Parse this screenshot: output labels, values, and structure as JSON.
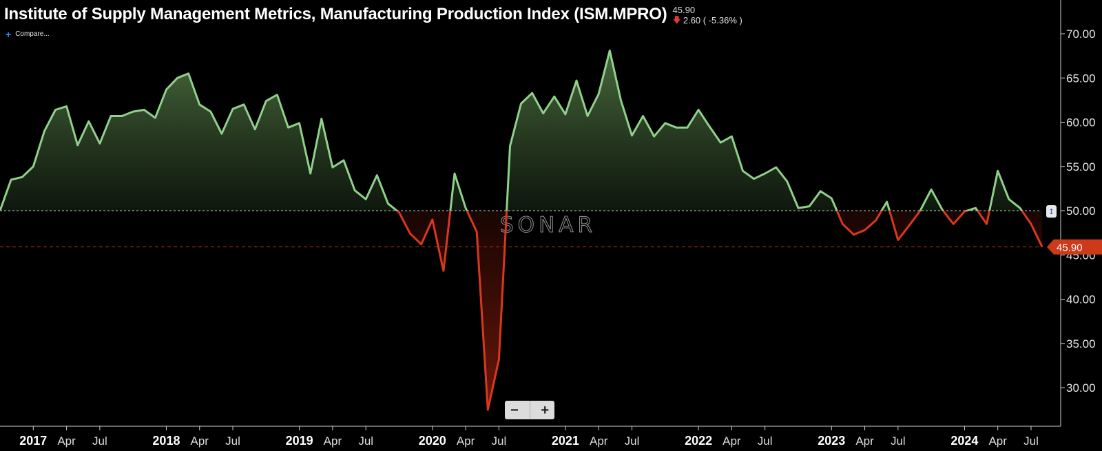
{
  "header": {
    "title": "Institute of Supply Management Metrics, Manufacturing Production Index (ISM.MPRO)",
    "last_value": "45.90",
    "change": "2.60 ( -5.36% )",
    "change_direction": "down",
    "compare_label": "Compare..."
  },
  "watermark": "SONAR",
  "zoom": {
    "out_label": "−",
    "in_label": "+"
  },
  "colors": {
    "above": "#8fd18a",
    "below": "#d9381e",
    "current_badge": "#cc3a1a",
    "background": "#000000"
  },
  "chart_data": {
    "type": "area",
    "title": "Institute of Supply Management Metrics, Manufacturing Production Index (ISM.MPRO)",
    "baseline": 50,
    "current_value": 45.9,
    "current_label": "45.90",
    "ylim": [
      26,
      74
    ],
    "y_ticks": [
      30,
      35,
      40,
      45,
      50,
      55,
      60,
      65,
      70
    ],
    "y_tick_labels": [
      "30.00",
      "35.00",
      "40.00",
      "45.00",
      "50.00",
      "55.00",
      "60.00",
      "65.00",
      "70.00"
    ],
    "x_ticks": [
      {
        "label": "2017",
        "date": "2017-01",
        "major": true
      },
      {
        "label": "Apr",
        "date": "2017-04",
        "major": false
      },
      {
        "label": "Jul",
        "date": "2017-07",
        "major": false
      },
      {
        "label": "2018",
        "date": "2018-01",
        "major": true
      },
      {
        "label": "Apr",
        "date": "2018-04",
        "major": false
      },
      {
        "label": "Jul",
        "date": "2018-07",
        "major": false
      },
      {
        "label": "2019",
        "date": "2019-01",
        "major": true
      },
      {
        "label": "Apr",
        "date": "2019-04",
        "major": false
      },
      {
        "label": "Jul",
        "date": "2019-07",
        "major": false
      },
      {
        "label": "2020",
        "date": "2020-01",
        "major": true
      },
      {
        "label": "Apr",
        "date": "2020-04",
        "major": false
      },
      {
        "label": "Jul",
        "date": "2020-07",
        "major": false
      },
      {
        "label": "2021",
        "date": "2021-01",
        "major": true
      },
      {
        "label": "Apr",
        "date": "2021-04",
        "major": false
      },
      {
        "label": "Jul",
        "date": "2021-07",
        "major": false
      },
      {
        "label": "2022",
        "date": "2022-01",
        "major": true
      },
      {
        "label": "Apr",
        "date": "2022-04",
        "major": false
      },
      {
        "label": "Jul",
        "date": "2022-07",
        "major": false
      },
      {
        "label": "2023",
        "date": "2023-01",
        "major": true
      },
      {
        "label": "Apr",
        "date": "2023-04",
        "major": false
      },
      {
        "label": "Jul",
        "date": "2023-07",
        "major": false
      },
      {
        "label": "2024",
        "date": "2024-01",
        "major": true
      },
      {
        "label": "Apr",
        "date": "2024-04",
        "major": false
      },
      {
        "label": "Jul",
        "date": "2024-07",
        "major": false
      }
    ],
    "x_start": "2016-10",
    "x_end": "2024-07",
    "series": [
      {
        "values": [
          [
            "2016-10",
            50.0
          ],
          [
            "2016-11",
            53.5
          ],
          [
            "2016-12",
            53.8
          ],
          [
            "2017-01",
            55.0
          ],
          [
            "2017-02",
            59.0
          ],
          [
            "2017-03",
            61.4
          ],
          [
            "2017-04",
            61.8
          ],
          [
            "2017-05",
            57.4
          ],
          [
            "2017-06",
            60.1
          ],
          [
            "2017-07",
            57.6
          ],
          [
            "2017-08",
            60.7
          ],
          [
            "2017-09",
            60.7
          ],
          [
            "2017-10",
            61.2
          ],
          [
            "2017-11",
            61.4
          ],
          [
            "2017-12",
            60.5
          ],
          [
            "2018-01",
            63.7
          ],
          [
            "2018-02",
            65.0
          ],
          [
            "2018-03",
            65.5
          ],
          [
            "2018-04",
            62.0
          ],
          [
            "2018-05",
            61.2
          ],
          [
            "2018-06",
            58.7
          ],
          [
            "2018-07",
            61.5
          ],
          [
            "2018-08",
            62.0
          ],
          [
            "2018-09",
            59.2
          ],
          [
            "2018-10",
            62.4
          ],
          [
            "2018-11",
            63.1
          ],
          [
            "2018-12",
            59.4
          ],
          [
            "2019-01",
            59.9
          ],
          [
            "2019-02",
            54.2
          ],
          [
            "2019-03",
            60.4
          ],
          [
            "2019-04",
            54.9
          ],
          [
            "2019-05",
            55.7
          ],
          [
            "2019-06",
            52.3
          ],
          [
            "2019-07",
            51.3
          ],
          [
            "2019-08",
            54.0
          ],
          [
            "2019-09",
            50.8
          ],
          [
            "2019-10",
            49.8
          ],
          [
            "2019-11",
            47.4
          ],
          [
            "2019-12",
            46.2
          ],
          [
            "2020-01",
            49.0
          ],
          [
            "2020-02",
            43.2
          ],
          [
            "2020-03",
            54.2
          ],
          [
            "2020-04",
            50.3
          ],
          [
            "2020-05",
            47.6
          ],
          [
            "2020-06",
            27.5
          ],
          [
            "2020-07",
            33.2
          ],
          [
            "2020-08",
            57.3
          ],
          [
            "2020-09",
            62.1
          ],
          [
            "2020-10",
            63.3
          ],
          [
            "2020-11",
            61.0
          ],
          [
            "2020-12",
            62.9
          ],
          [
            "2021-01",
            60.9
          ],
          [
            "2021-02",
            64.7
          ],
          [
            "2021-03",
            60.7
          ],
          [
            "2021-04",
            63.2
          ],
          [
            "2021-05",
            68.1
          ],
          [
            "2021-06",
            62.5
          ],
          [
            "2021-07",
            58.5
          ],
          [
            "2021-08",
            60.7
          ],
          [
            "2021-09",
            58.4
          ],
          [
            "2021-10",
            59.9
          ],
          [
            "2021-11",
            59.4
          ],
          [
            "2021-12",
            59.4
          ],
          [
            "2022-01",
            61.4
          ],
          [
            "2022-02",
            59.5
          ],
          [
            "2022-03",
            57.7
          ],
          [
            "2022-04",
            58.4
          ],
          [
            "2022-05",
            54.5
          ],
          [
            "2022-06",
            53.6
          ],
          [
            "2022-07",
            54.2
          ],
          [
            "2022-08",
            54.9
          ],
          [
            "2022-09",
            53.3
          ],
          [
            "2022-10",
            50.3
          ],
          [
            "2022-11",
            50.5
          ],
          [
            "2022-12",
            52.2
          ],
          [
            "2023-01",
            51.4
          ],
          [
            "2023-02",
            48.5
          ],
          [
            "2023-03",
            47.3
          ],
          [
            "2023-04",
            47.8
          ],
          [
            "2023-05",
            48.9
          ],
          [
            "2023-06",
            51.0
          ],
          [
            "2023-07",
            46.7
          ],
          [
            "2023-08",
            48.3
          ],
          [
            "2023-09",
            50.0
          ],
          [
            "2023-10",
            52.4
          ],
          [
            "2023-11",
            50.1
          ],
          [
            "2023-12",
            48.5
          ],
          [
            "2024-01",
            49.9
          ],
          [
            "2024-02",
            50.3
          ],
          [
            "2024-03",
            48.5
          ],
          [
            "2024-04",
            54.5
          ],
          [
            "2024-05",
            51.3
          ],
          [
            "2024-06",
            50.3
          ],
          [
            "2024-07",
            48.5
          ],
          [
            "2024-08",
            45.9
          ]
        ]
      }
    ]
  }
}
